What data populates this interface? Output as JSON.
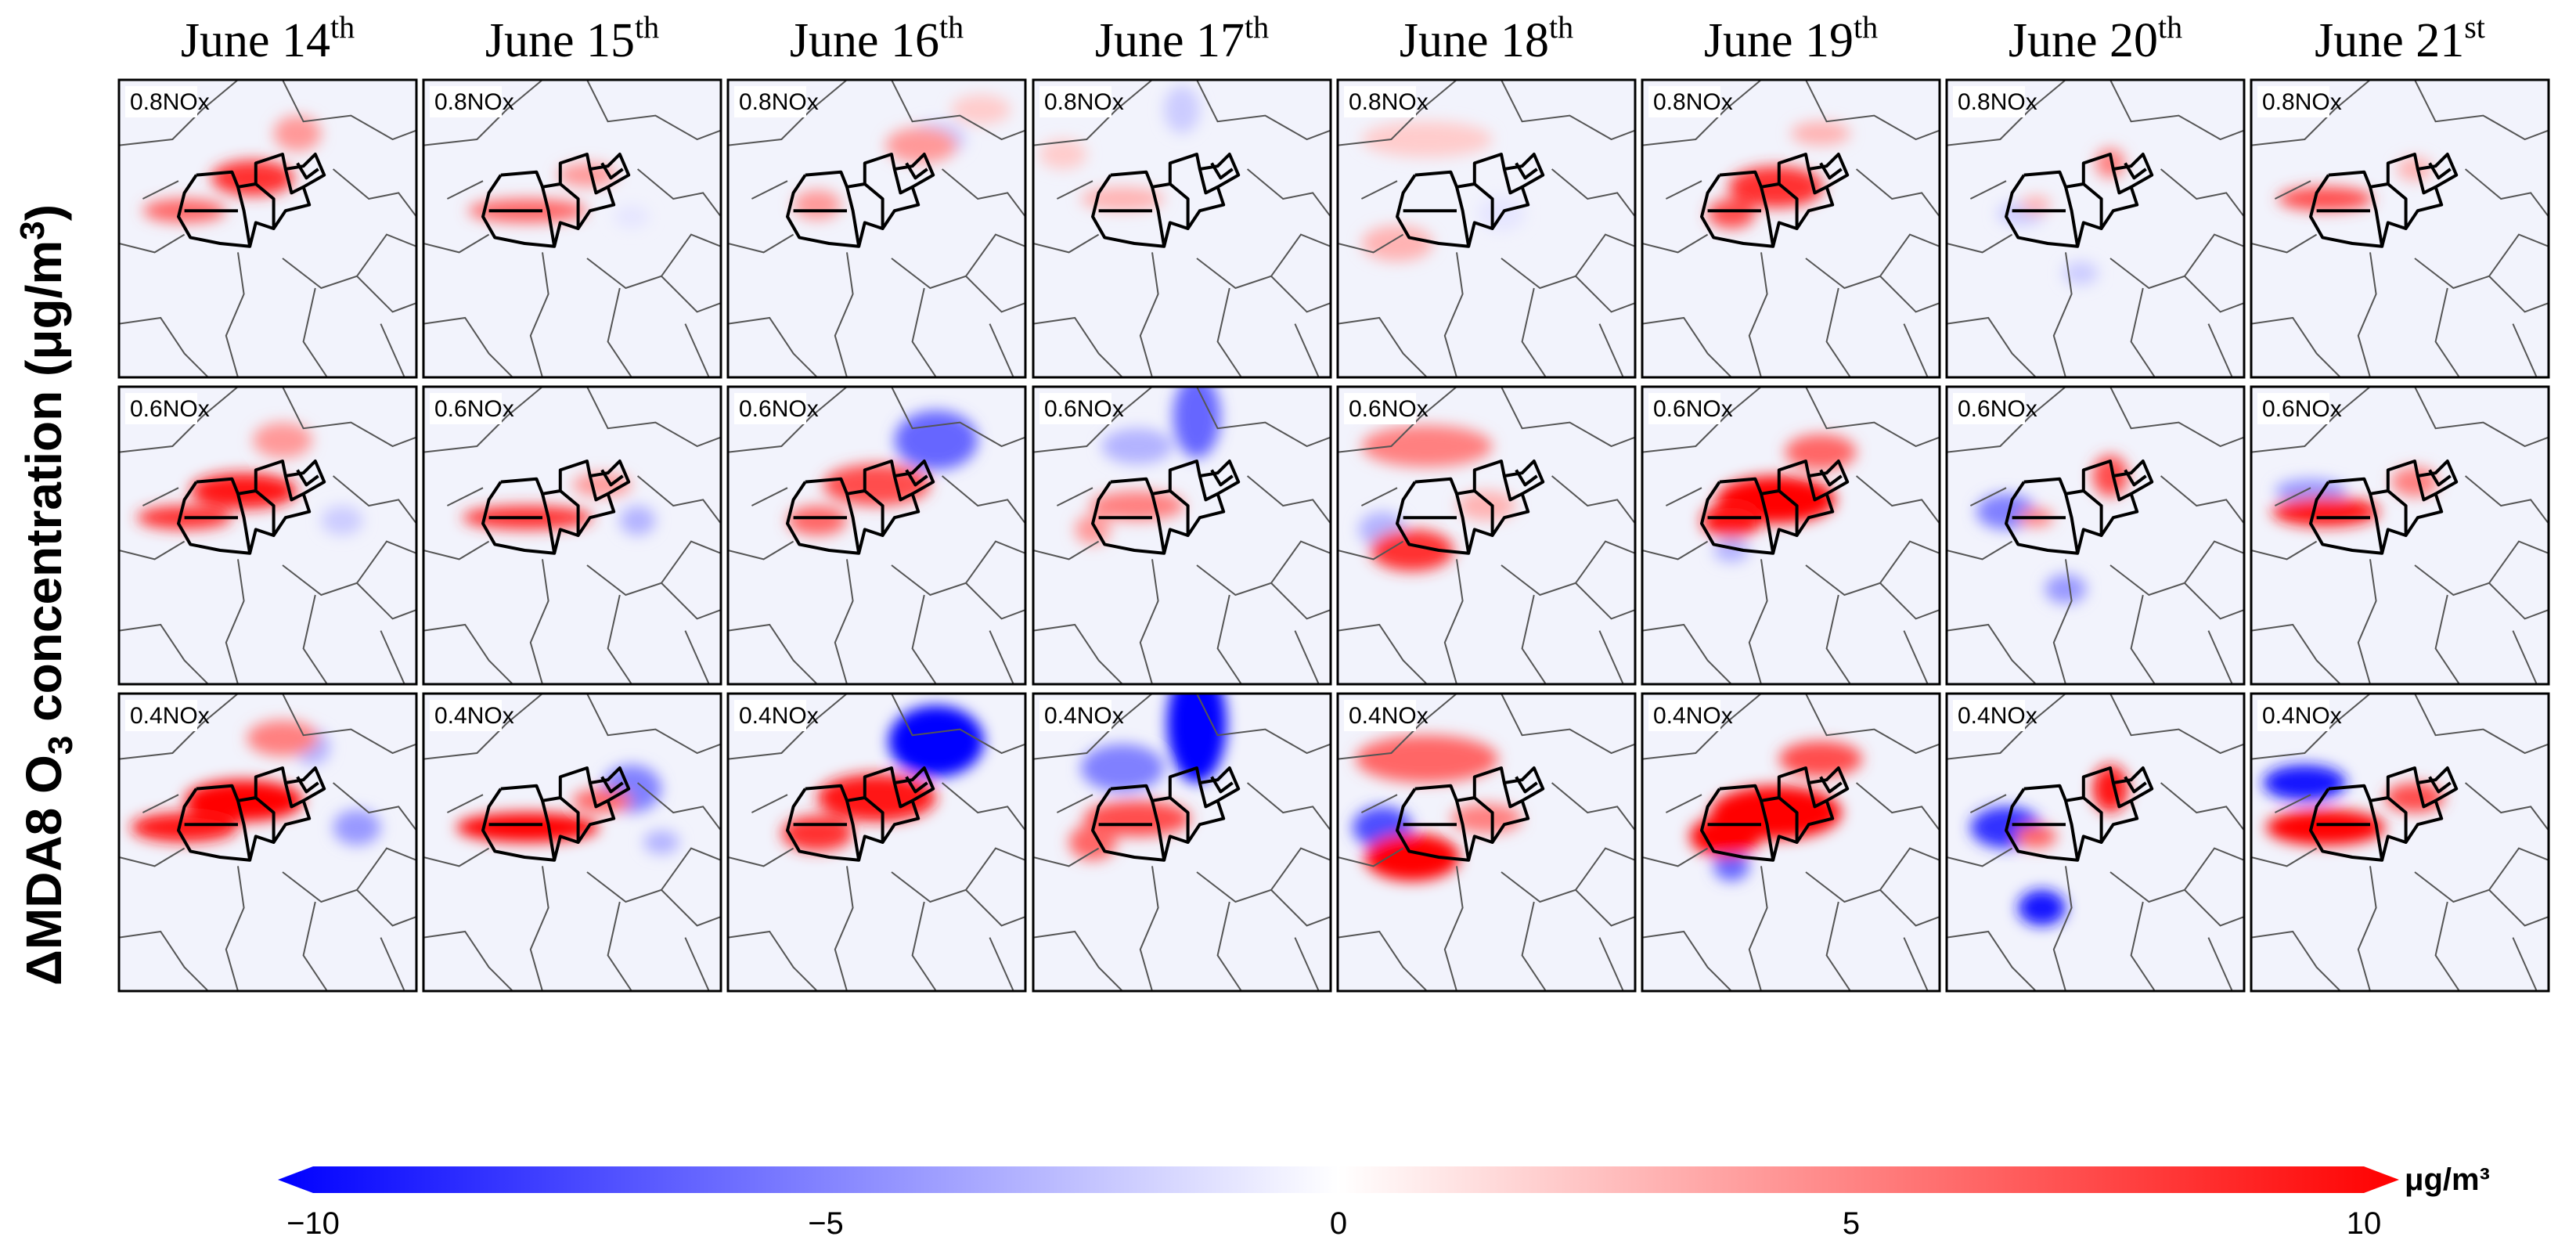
{
  "chart_data": {
    "type": "heatmap",
    "title": "",
    "ylabel": {
      "prefix": "ΔMDA8 O",
      "subscript": "3",
      "suffix": " concentration (μg/m",
      "superscript": "3",
      "close": ")"
    },
    "columns": [
      {
        "day": "June 14",
        "ordinal": "th"
      },
      {
        "day": "June 15",
        "ordinal": "th"
      },
      {
        "day": "June 16",
        "ordinal": "th"
      },
      {
        "day": "June 17",
        "ordinal": "th"
      },
      {
        "day": "June 18",
        "ordinal": "th"
      },
      {
        "day": "June 19",
        "ordinal": "th"
      },
      {
        "day": "June 20",
        "ordinal": "th"
      },
      {
        "day": "June 21",
        "ordinal": "st"
      }
    ],
    "rows": [
      "0.8NOx",
      "0.6NOx",
      "0.4NOx"
    ],
    "colorbar": {
      "min": -10,
      "max": 10,
      "ticks": [
        -10,
        -5,
        0,
        5,
        10
      ],
      "tick_labels": [
        "−10",
        "−5",
        "0",
        "5",
        "10"
      ],
      "unit": "μg/m³",
      "negative_color": "#0000ff",
      "zero_color": "#ffffff",
      "positive_color": "#ff0000"
    },
    "cells": [
      [
        {
          "hot": [
            [
              0.45,
              0.33,
              0.14,
              0.06,
              8
            ],
            [
              0.22,
              0.44,
              0.14,
              0.04,
              6
            ],
            [
              0.6,
              0.18,
              0.08,
              0.06,
              4
            ]
          ],
          "cold": []
        },
        {
          "hot": [
            [
              0.35,
              0.44,
              0.2,
              0.04,
              6
            ],
            [
              0.55,
              0.32,
              0.1,
              0.04,
              4
            ]
          ],
          "cold": [
            [
              0.7,
              0.46,
              0.06,
              0.04,
              1
            ]
          ]
        },
        {
          "hot": [
            [
              0.65,
              0.22,
              0.12,
              0.06,
              4
            ],
            [
              0.3,
              0.42,
              0.08,
              0.05,
              4
            ],
            [
              0.85,
              0.1,
              0.1,
              0.05,
              2
            ]
          ],
          "cold": [
            [
              0.7,
              0.2,
              0.1,
              0.06,
              2
            ]
          ]
        },
        {
          "hot": [
            [
              0.3,
              0.4,
              0.14,
              0.04,
              3
            ],
            [
              0.1,
              0.25,
              0.08,
              0.05,
              2
            ]
          ],
          "cold": [
            [
              0.5,
              0.1,
              0.06,
              0.08,
              2
            ]
          ]
        },
        {
          "hot": [
            [
              0.3,
              0.2,
              0.22,
              0.06,
              2
            ],
            [
              0.2,
              0.55,
              0.12,
              0.06,
              3
            ]
          ],
          "cold": [
            [
              0.55,
              0.45,
              0.08,
              0.06,
              1
            ]
          ]
        },
        {
          "hot": [
            [
              0.45,
              0.36,
              0.16,
              0.07,
              8
            ],
            [
              0.3,
              0.45,
              0.08,
              0.05,
              7
            ],
            [
              0.6,
              0.18,
              0.1,
              0.04,
              3
            ]
          ],
          "cold": []
        },
        {
          "hot": [
            [
              0.55,
              0.28,
              0.05,
              0.05,
              5
            ],
            [
              0.3,
              0.42,
              0.05,
              0.03,
              3
            ]
          ],
          "cold": [
            [
              0.25,
              0.45,
              0.08,
              0.04,
              2
            ],
            [
              0.45,
              0.65,
              0.06,
              0.04,
              2
            ]
          ]
        },
        {
          "hot": [
            [
              0.25,
              0.4,
              0.16,
              0.04,
              7
            ],
            [
              0.55,
              0.3,
              0.06,
              0.04,
              3
            ]
          ],
          "cold": []
        }
      ],
      [
        {
          "hot": [
            [
              0.42,
              0.35,
              0.18,
              0.06,
              9
            ],
            [
              0.22,
              0.44,
              0.16,
              0.04,
              8
            ],
            [
              0.55,
              0.18,
              0.1,
              0.06,
              4
            ]
          ],
          "cold": [
            [
              0.75,
              0.45,
              0.07,
              0.05,
              2
            ]
          ]
        },
        {
          "hot": [
            [
              0.35,
              0.44,
              0.22,
              0.04,
              8
            ],
            [
              0.6,
              0.33,
              0.1,
              0.04,
              4
            ]
          ],
          "cold": [
            [
              0.72,
              0.45,
              0.06,
              0.05,
              3
            ]
          ]
        },
        {
          "hot": [
            [
              0.5,
              0.33,
              0.18,
              0.07,
              7
            ],
            [
              0.3,
              0.45,
              0.1,
              0.05,
              6
            ]
          ],
          "cold": [
            [
              0.7,
              0.18,
              0.14,
              0.1,
              6
            ]
          ]
        },
        {
          "hot": [
            [
              0.35,
              0.4,
              0.16,
              0.05,
              5
            ],
            [
              0.2,
              0.48,
              0.06,
              0.05,
              4
            ]
          ],
          "cold": [
            [
              0.55,
              0.1,
              0.08,
              0.14,
              6
            ],
            [
              0.35,
              0.2,
              0.12,
              0.06,
              3
            ]
          ]
        },
        {
          "hot": [
            [
              0.3,
              0.2,
              0.22,
              0.07,
              5
            ],
            [
              0.25,
              0.55,
              0.14,
              0.07,
              8
            ],
            [
              0.5,
              0.4,
              0.1,
              0.05,
              3
            ]
          ],
          "cold": [
            [
              0.15,
              0.48,
              0.08,
              0.06,
              3
            ]
          ]
        },
        {
          "hot": [
            [
              0.45,
              0.38,
              0.2,
              0.08,
              10
            ],
            [
              0.3,
              0.45,
              0.1,
              0.06,
              9
            ],
            [
              0.6,
              0.22,
              0.12,
              0.06,
              6
            ]
          ],
          "cold": [
            [
              0.3,
              0.55,
              0.06,
              0.04,
              3
            ]
          ]
        },
        {
          "hot": [
            [
              0.55,
              0.3,
              0.06,
              0.07,
              7
            ],
            [
              0.3,
              0.44,
              0.06,
              0.03,
              5
            ]
          ],
          "cold": [
            [
              0.2,
              0.42,
              0.1,
              0.06,
              5
            ],
            [
              0.4,
              0.68,
              0.07,
              0.05,
              4
            ]
          ]
        },
        {
          "hot": [
            [
              0.25,
              0.42,
              0.18,
              0.05,
              9
            ],
            [
              0.55,
              0.32,
              0.08,
              0.05,
              5
            ]
          ],
          "cold": [
            [
              0.2,
              0.35,
              0.12,
              0.04,
              4
            ]
          ]
        }
      ],
      [
        {
          "hot": [
            [
              0.42,
              0.36,
              0.2,
              0.07,
              10
            ],
            [
              0.22,
              0.45,
              0.18,
              0.05,
              9
            ],
            [
              0.55,
              0.15,
              0.12,
              0.06,
              5
            ]
          ],
          "cold": [
            [
              0.8,
              0.45,
              0.08,
              0.06,
              4
            ],
            [
              0.65,
              0.18,
              0.06,
              0.06,
              3
            ]
          ]
        },
        {
          "hot": [
            [
              0.35,
              0.45,
              0.24,
              0.05,
              10
            ],
            [
              0.6,
              0.36,
              0.1,
              0.04,
              6
            ]
          ],
          "cold": [
            [
              0.7,
              0.32,
              0.1,
              0.08,
              5
            ],
            [
              0.8,
              0.5,
              0.06,
              0.04,
              3
            ]
          ]
        },
        {
          "hot": [
            [
              0.5,
              0.35,
              0.2,
              0.08,
              9
            ],
            [
              0.3,
              0.47,
              0.12,
              0.06,
              8
            ]
          ],
          "cold": [
            [
              0.7,
              0.16,
              0.16,
              0.12,
              10
            ]
          ]
        },
        {
          "hot": [
            [
              0.35,
              0.42,
              0.18,
              0.06,
              7
            ],
            [
              0.2,
              0.5,
              0.08,
              0.06,
              6
            ]
          ],
          "cold": [
            [
              0.55,
              0.1,
              0.1,
              0.2,
              10
            ],
            [
              0.3,
              0.25,
              0.14,
              0.08,
              5
            ]
          ]
        },
        {
          "hot": [
            [
              0.3,
              0.22,
              0.24,
              0.08,
              6
            ],
            [
              0.25,
              0.55,
              0.16,
              0.08,
              10
            ],
            [
              0.5,
              0.42,
              0.12,
              0.05,
              5
            ]
          ],
          "cold": [
            [
              0.15,
              0.45,
              0.1,
              0.07,
              7
            ]
          ]
        },
        {
          "hot": [
            [
              0.45,
              0.4,
              0.22,
              0.09,
              10
            ],
            [
              0.28,
              0.48,
              0.12,
              0.07,
              10
            ],
            [
              0.6,
              0.22,
              0.14,
              0.06,
              7
            ]
          ],
          "cold": [
            [
              0.3,
              0.58,
              0.06,
              0.05,
              6
            ]
          ]
        },
        {
          "hot": [
            [
              0.55,
              0.32,
              0.06,
              0.08,
              9
            ],
            [
              0.3,
              0.48,
              0.07,
              0.04,
              6
            ]
          ],
          "cold": [
            [
              0.2,
              0.45,
              0.12,
              0.07,
              8
            ],
            [
              0.32,
              0.72,
              0.08,
              0.06,
              9
            ]
          ]
        },
        {
          "hot": [
            [
              0.25,
              0.45,
              0.2,
              0.06,
              10
            ],
            [
              0.55,
              0.35,
              0.1,
              0.05,
              7
            ]
          ],
          "cold": [
            [
              0.18,
              0.3,
              0.14,
              0.06,
              9
            ]
          ]
        }
      ]
    ]
  }
}
